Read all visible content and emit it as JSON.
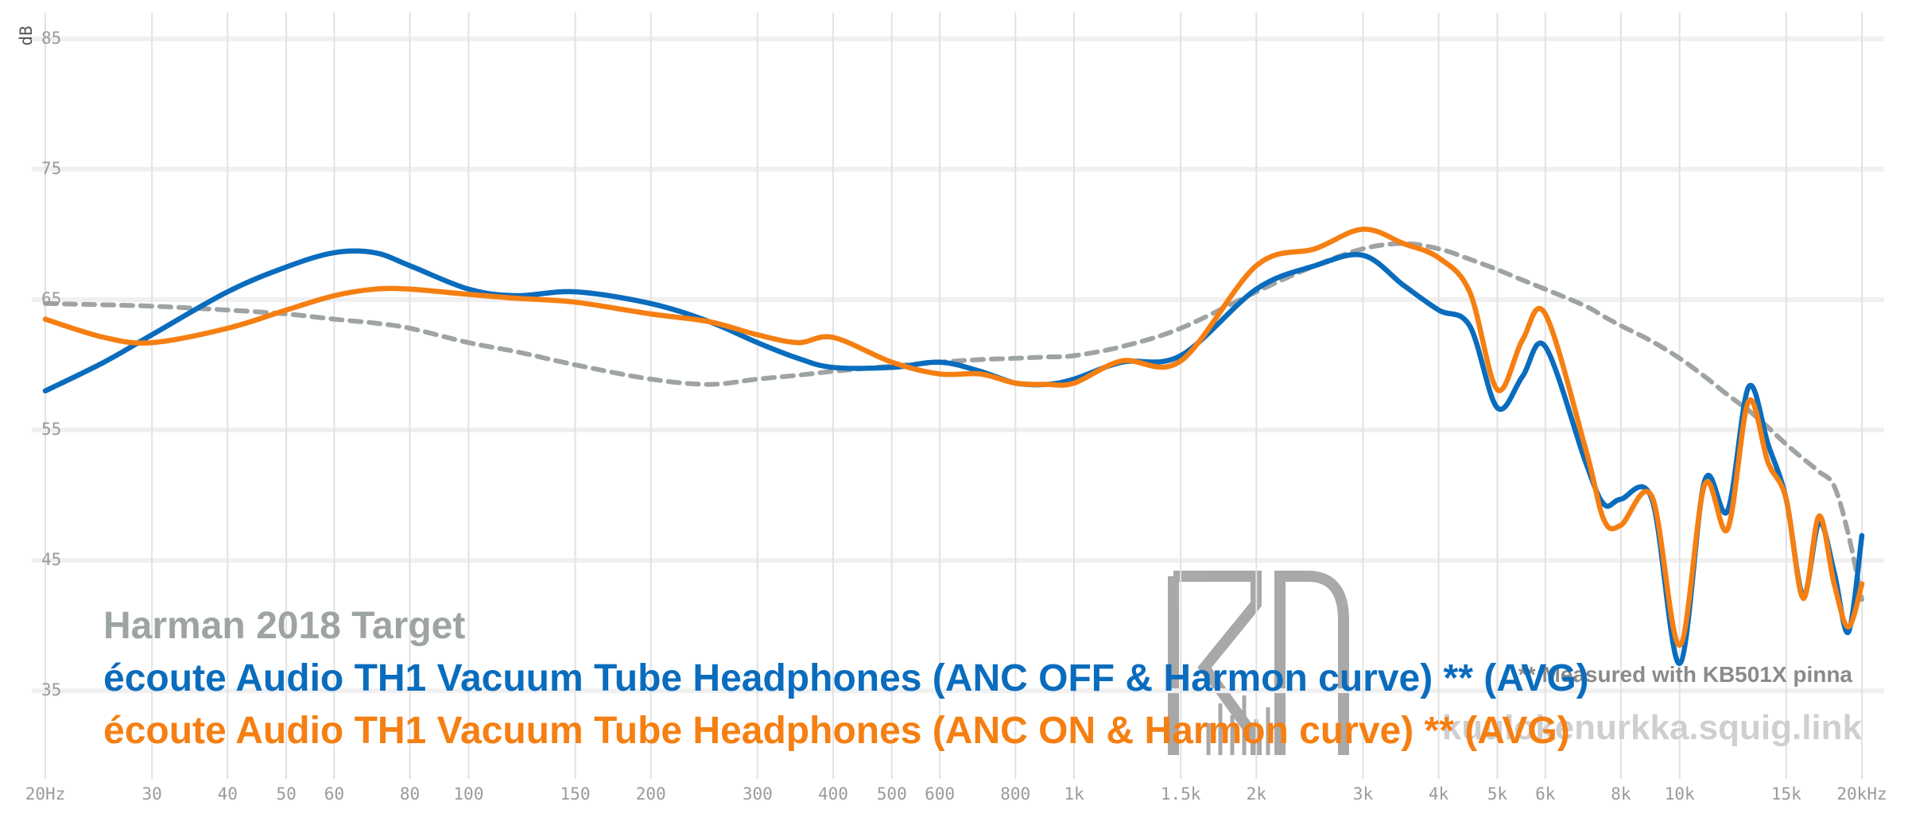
{
  "chart_data": {
    "type": "line",
    "y_label": "dB",
    "xscale": "log",
    "grid": true,
    "x": [
      20,
      25,
      30,
      40,
      50,
      60,
      70,
      80,
      100,
      120,
      150,
      200,
      250,
      300,
      350,
      400,
      500,
      600,
      700,
      800,
      900,
      1000,
      1200,
      1500,
      2000,
      2500,
      3000,
      3500,
      4000,
      4500,
      5000,
      5500,
      6000,
      7000,
      7500,
      8000,
      9000,
      10000,
      11000,
      12000,
      13000,
      14000,
      15000,
      16000,
      17000,
      18000,
      19000,
      20000
    ],
    "xlim": [
      20,
      20000
    ],
    "xticks": [
      {
        "value": 20,
        "label": "20Hz"
      },
      30,
      40,
      50,
      60,
      80,
      100,
      150,
      200,
      300,
      400,
      500,
      600,
      800,
      {
        "value": 1000,
        "label": "1k"
      },
      {
        "value": 1500,
        "label": "1.5k"
      },
      {
        "value": 2000,
        "label": "2k"
      },
      {
        "value": 3000,
        "label": "3k"
      },
      {
        "value": 4000,
        "label": "4k"
      },
      {
        "value": 5000,
        "label": "5k"
      },
      {
        "value": 6000,
        "label": "6k"
      },
      {
        "value": 8000,
        "label": "8k"
      },
      {
        "value": 10000,
        "label": "10k"
      },
      {
        "value": 15000,
        "label": "15k"
      },
      {
        "value": 20000,
        "label": "20kHz"
      }
    ],
    "ylim": [
      28,
      87
    ],
    "yticks": [
      35,
      45,
      55,
      65,
      75,
      85
    ],
    "series": [
      {
        "name": "Harman 2018 Target",
        "color": "#9ea3a3",
        "style": "dashed",
        "values": [
          64.7,
          64.6,
          64.5,
          64.2,
          63.9,
          63.5,
          63.2,
          62.8,
          61.7,
          61.0,
          60.0,
          58.9,
          58.5,
          58.9,
          59.2,
          59.5,
          59.9,
          60.2,
          60.4,
          60.5,
          60.6,
          60.7,
          61.4,
          62.8,
          65.6,
          67.6,
          68.9,
          69.3,
          68.9,
          68.1,
          67.3,
          66.5,
          65.8,
          64.5,
          63.7,
          63.0,
          61.8,
          60.5,
          59.1,
          57.7,
          56.5,
          55.2,
          53.9,
          52.8,
          51.8,
          50.7,
          47,
          42
        ]
      },
      {
        "name": "écoute Audio TH1 Vacuum Tube Headphones (ANC OFF & Harmon curve) ** (AVG)",
        "color": "#0a6cbd",
        "style": "solid",
        "values": [
          58.0,
          60.2,
          62.3,
          65.6,
          67.5,
          68.6,
          68.6,
          67.6,
          65.8,
          65.3,
          65.6,
          64.7,
          63.3,
          61.7,
          60.5,
          59.8,
          59.8,
          60.2,
          59.5,
          58.6,
          58.5,
          58.9,
          60.2,
          60.7,
          65.8,
          67.6,
          68.4,
          66.1,
          64.2,
          63.0,
          56.7,
          59.1,
          61.4,
          52.5,
          49.3,
          49.7,
          49.7,
          37.1,
          51.1,
          48.8,
          58.3,
          53.9,
          49.7,
          42.3,
          47.9,
          44.1,
          39.5,
          46.9
        ]
      },
      {
        "name": "écoute Audio TH1 Vacuum Tube Headphones (ANC ON & Harmon curve) ** (AVG)",
        "color": "#f57f12",
        "style": "solid",
        "values": [
          63.5,
          62.1,
          61.7,
          62.8,
          64.2,
          65.3,
          65.8,
          65.8,
          65.4,
          65.1,
          64.8,
          63.9,
          63.3,
          62.3,
          61.7,
          62.1,
          60.2,
          59.3,
          59.3,
          58.6,
          58.5,
          58.6,
          60.3,
          60.3,
          67.6,
          68.9,
          70.4,
          69.3,
          68.2,
          65.6,
          58.1,
          61.9,
          63.9,
          53.5,
          48.1,
          47.7,
          49.9,
          38.5,
          50.8,
          47.4,
          57.2,
          52.5,
          49.7,
          42.1,
          48.4,
          43.2,
          39.9,
          43.2
        ]
      }
    ],
    "annotations": [
      "** Measured with KB501X pinna",
      "kuulokenurkka.squig.link"
    ]
  }
}
